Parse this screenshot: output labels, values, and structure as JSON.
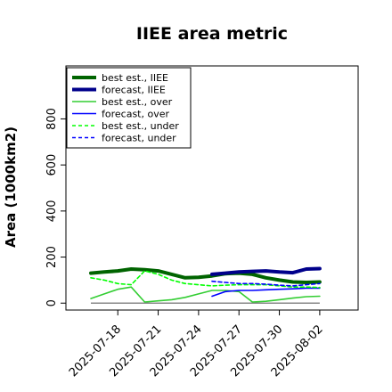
{
  "chart_data": {
    "type": "line",
    "title": "IIEE area metric",
    "xlabel": "",
    "ylabel": "Area (1000km2)",
    "x": [
      "2025-07-16",
      "2025-07-17",
      "2025-07-18",
      "2025-07-19",
      "2025-07-20",
      "2025-07-21",
      "2025-07-22",
      "2025-07-23",
      "2025-07-24",
      "2025-07-25",
      "2025-07-26",
      "2025-07-27",
      "2025-07-28",
      "2025-07-29",
      "2025-07-30",
      "2025-07-31",
      "2025-08-01",
      "2025-08-02",
      "2025-08-03"
    ],
    "x_ticks": [
      "2025-07-18",
      "2025-07-21",
      "2025-07-24",
      "2025-07-27",
      "2025-07-30",
      "2025-08-02"
    ],
    "highlighted_tick": "2025-07-24",
    "highlight_color": "#228B22",
    "y_ticks": [
      0,
      200,
      400,
      600,
      800
    ],
    "ylim": [
      -30,
      1030
    ],
    "grid": false,
    "legend_position": "top-left",
    "baseline": {
      "value": 0,
      "color": "#888888"
    },
    "series": [
      {
        "name": "best est., IIEE",
        "color": "#006400",
        "style": "solid",
        "width": 4,
        "values": [
          130,
          135,
          140,
          148,
          145,
          140,
          125,
          110,
          112,
          118,
          128,
          130,
          125,
          110,
          100,
          92,
          90,
          92,
          null
        ]
      },
      {
        "name": "forecast, IIEE",
        "color": "#00008B",
        "style": "solid",
        "width": 4,
        "values": [
          null,
          null,
          null,
          null,
          null,
          null,
          null,
          null,
          null,
          125,
          130,
          135,
          138,
          140,
          135,
          132,
          148,
          150,
          null
        ]
      },
      {
        "name": "best est., over",
        "color": "#32CD32",
        "style": "solid",
        "width": 1.6,
        "values": [
          20,
          40,
          60,
          70,
          5,
          10,
          15,
          25,
          40,
          55,
          55,
          50,
          5,
          8,
          15,
          22,
          28,
          30,
          null
        ]
      },
      {
        "name": "forecast, over",
        "color": "#0000FF",
        "style": "solid",
        "width": 1.6,
        "values": [
          null,
          null,
          null,
          null,
          null,
          null,
          null,
          null,
          null,
          30,
          50,
          55,
          55,
          58,
          60,
          62,
          65,
          65,
          null
        ]
      },
      {
        "name": "best est., under",
        "color": "#00FF00",
        "style": "dashed",
        "width": 1.6,
        "values": [
          110,
          100,
          85,
          80,
          140,
          125,
          100,
          85,
          80,
          75,
          78,
          80,
          80,
          80,
          75,
          70,
          70,
          68,
          null
        ]
      },
      {
        "name": "forecast, under",
        "color": "#0000FF",
        "style": "dashed",
        "width": 1.6,
        "values": [
          null,
          null,
          null,
          null,
          null,
          null,
          null,
          null,
          null,
          95,
          90,
          85,
          85,
          82,
          78,
          75,
          80,
          85,
          null
        ]
      }
    ]
  }
}
